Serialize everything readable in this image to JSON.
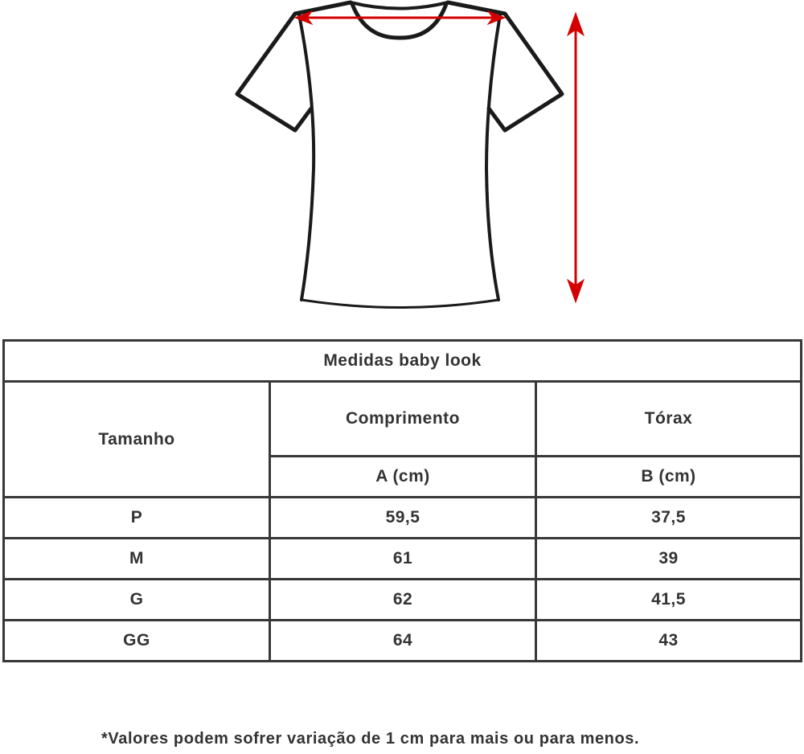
{
  "diagram": {
    "icon": "t-shirt-outline",
    "arrow_color": "#d40000"
  },
  "table": {
    "title": "Medidas baby look",
    "headers": {
      "size": "Tamanho",
      "length": "Comprimento",
      "chest": "Tórax",
      "length_unit": "A (cm)",
      "chest_unit": "B (cm)"
    },
    "rows": [
      {
        "size": "P",
        "length": "59,5",
        "chest": "37,5"
      },
      {
        "size": "M",
        "length": "61",
        "chest": "39"
      },
      {
        "size": "G",
        "length": "62",
        "chest": "41,5"
      },
      {
        "size": "GG",
        "length": "64",
        "chest": "43"
      }
    ]
  },
  "note": "*Valores podem sofrer variação de 1 cm para mais ou para menos."
}
